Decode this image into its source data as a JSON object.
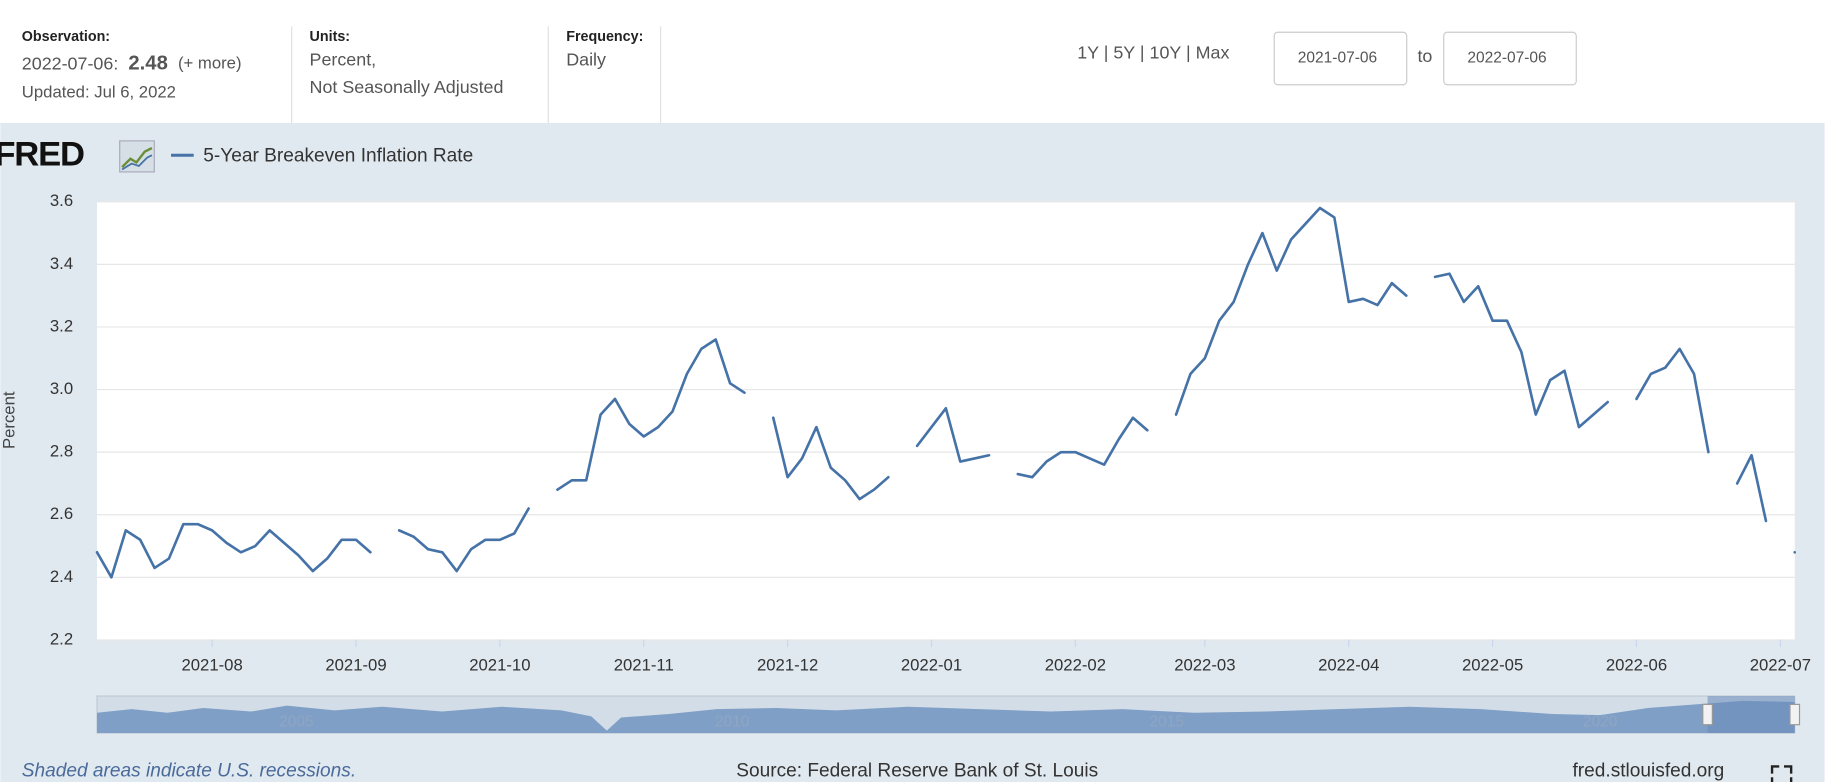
{
  "header": {
    "observation_label": "Observation:",
    "observation_date": "2022-07-06:",
    "observation_value": "2.48",
    "more": "(+ more)",
    "updated": "Updated: Jul 6, 2022",
    "units_label": "Units:",
    "units_line1": "Percent,",
    "units_line2": "Not Seasonally Adjusted",
    "frequency_label": "Frequency:",
    "frequency": "Daily",
    "ranges": "1Y | 5Y | 10Y | Max",
    "start_date": "2021-07-06",
    "to": "to",
    "end_date": "2022-07-06"
  },
  "logo": "FRED",
  "chart_data": {
    "type": "line",
    "y_label": "Percent",
    "categories": [
      null,
      null,
      null,
      null,
      null,
      null,
      null,
      null,
      "2021-08",
      null,
      null,
      null,
      null,
      null,
      null,
      null,
      null,
      null,
      "2021-09",
      null,
      null,
      null,
      null,
      null,
      null,
      null,
      null,
      null,
      "2021-10",
      null,
      null,
      null,
      null,
      null,
      null,
      null,
      null,
      null,
      "2021-11",
      null,
      null,
      null,
      null,
      null,
      null,
      null,
      null,
      null,
      "2021-12",
      null,
      null,
      null,
      null,
      null,
      null,
      null,
      null,
      null,
      "2022-01",
      null,
      null,
      null,
      null,
      null,
      null,
      null,
      null,
      null,
      "2022-02",
      null,
      null,
      null,
      null,
      null,
      null,
      null,
      null,
      "2022-03",
      null,
      null,
      null,
      null,
      null,
      null,
      null,
      null,
      null,
      "2022-04",
      null,
      null,
      null,
      null,
      null,
      null,
      null,
      null,
      null,
      "2022-05",
      null,
      null,
      null,
      null,
      null,
      null,
      null,
      null,
      null,
      "2022-06",
      null,
      null,
      null,
      null,
      null,
      null,
      null,
      null,
      null,
      "2022-07",
      null
    ],
    "series": [
      {
        "name": "5-Year Breakeven Inflation Rate",
        "color": "#4572a7",
        "values": [
          2.48,
          2.4,
          2.55,
          2.52,
          2.43,
          2.46,
          2.57,
          2.57,
          2.55,
          2.51,
          2.48,
          2.5,
          2.55,
          2.51,
          2.47,
          2.42,
          2.46,
          2.52,
          2.52,
          2.48,
          null,
          2.55,
          2.53,
          2.49,
          2.48,
          2.42,
          2.49,
          2.52,
          2.52,
          2.54,
          2.62,
          null,
          2.68,
          2.71,
          2.71,
          2.92,
          2.97,
          2.89,
          2.85,
          2.88,
          2.93,
          3.05,
          3.13,
          3.16,
          3.02,
          2.99,
          null,
          2.91,
          2.72,
          2.78,
          2.88,
          2.75,
          2.71,
          2.65,
          2.68,
          2.72,
          null,
          2.82,
          2.88,
          2.94,
          2.77,
          2.78,
          2.79,
          null,
          2.73,
          2.72,
          2.77,
          2.8,
          2.8,
          2.78,
          2.76,
          2.84,
          2.91,
          2.87,
          null,
          2.92,
          3.05,
          3.1,
          3.22,
          3.28,
          3.4,
          3.5,
          3.38,
          3.48,
          3.53,
          3.58,
          3.55,
          3.28,
          3.29,
          3.27,
          3.34,
          3.3,
          null,
          3.36,
          3.37,
          3.28,
          3.33,
          3.22,
          3.22,
          3.12,
          2.92,
          3.03,
          3.06,
          2.88,
          2.92,
          2.96,
          null,
          2.97,
          3.05,
          3.07,
          3.13,
          3.05,
          2.8,
          null,
          2.7,
          2.79,
          2.58,
          null,
          2.48
        ]
      }
    ],
    "ylim": [
      2.2,
      3.6
    ],
    "yticks": [
      2.2,
      2.4,
      2.6,
      2.8,
      {
        "value": 3,
        "label": "3.0"
      },
      3.2,
      3.4,
      3.6
    ],
    "grid": true
  },
  "navigator": {
    "labels": [
      "2005",
      "2010",
      "2015",
      "2020"
    ]
  },
  "footer": {
    "recessions": "Shaded areas indicate U.S. recessions.",
    "source": "Source: Federal Reserve Bank of St. Louis",
    "site": "fred.stlouisfed.org"
  }
}
